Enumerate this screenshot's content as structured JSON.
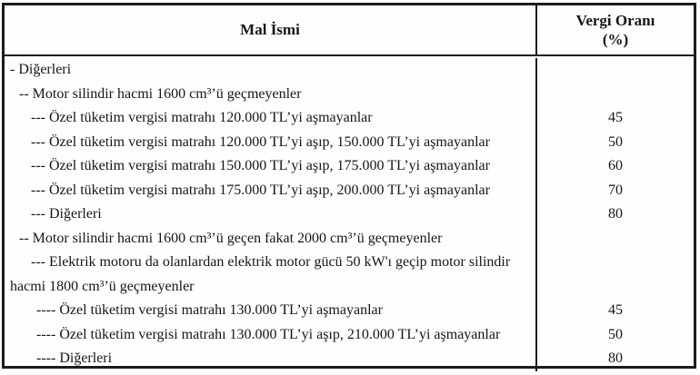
{
  "colors": {
    "ink": "#1c1c1c",
    "paper": "#fefefe"
  },
  "table": {
    "header": {
      "product_column": "Mal İsmi",
      "rate_column_line1": "Vergi Oranı",
      "rate_column_line2": "(%)"
    },
    "rows": [
      {
        "label": "- Diğerleri",
        "rate": ""
      },
      {
        "label": "-- Motor silindir hacmi 1600 cm³’ü geçmeyenler",
        "rate": ""
      },
      {
        "label": "--- Özel tüketim vergisi matrahı 120.000 TL’yi aşmayanlar",
        "rate": "45"
      },
      {
        "label": "--- Özel tüketim vergisi matrahı 120.000 TL’yi aşıp, 150.000 TL’yi aşmayanlar",
        "rate": "50"
      },
      {
        "label": "--- Özel tüketim vergisi matrahı 150.000 TL’yi aşıp, 175.000 TL’yi aşmayanlar",
        "rate": "60"
      },
      {
        "label": "--- Özel tüketim vergisi matrahı 175.000 TL’yi aşıp, 200.000 TL’yi aşmayanlar",
        "rate": "70"
      },
      {
        "label": "--- Diğerleri",
        "rate": "80"
      },
      {
        "label": "-- Motor silindir hacmi 1600 cm³’ü geçen fakat 2000 cm³’ü geçmeyenler",
        "rate": ""
      },
      {
        "label": "--- Elektrik motoru da olanlardan elektrik motor gücü 50 kW'ı geçip motor silindir hacmi 1800 cm³’ü geçmeyenler",
        "rate": ""
      },
      {
        "label": "---- Özel tüketim vergisi matrahı 130.000 TL’yi aşmayanlar",
        "rate": "45"
      },
      {
        "label": "---- Özel tüketim vergisi matrahı 130.000 TL’yi aşıp, 210.000 TL’yi aşmayanlar",
        "rate": "50"
      },
      {
        "label": "---- Diğerleri",
        "rate": "80"
      }
    ]
  }
}
